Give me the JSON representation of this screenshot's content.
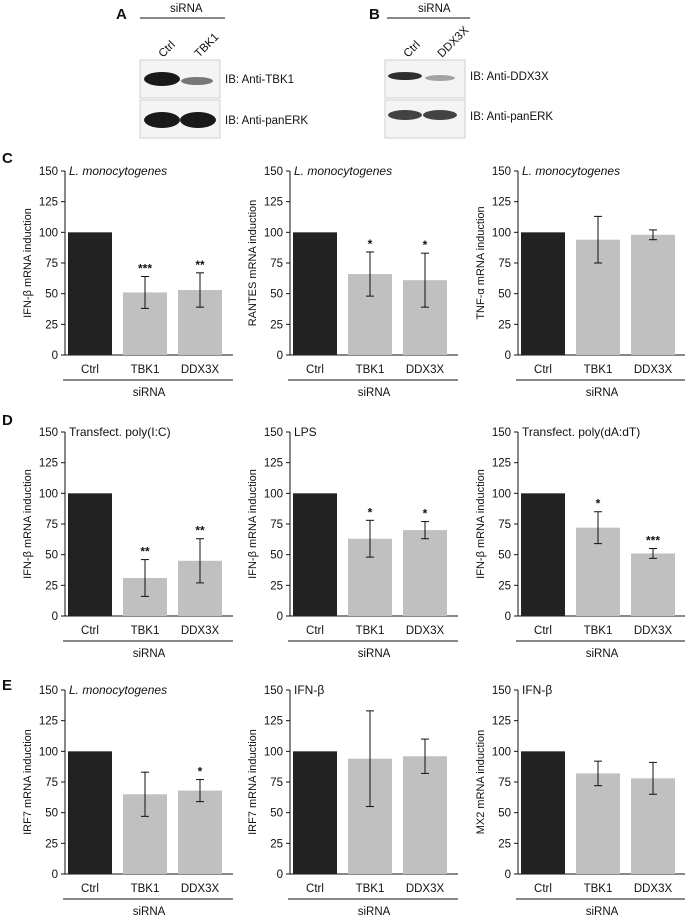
{
  "colors": {
    "ctrl": "#222222",
    "sirna": "#c0c0c0",
    "axis": "#111111"
  },
  "blots": [
    {
      "panel": "A",
      "header": "siRNA",
      "lanes": [
        "Ctrl",
        "TBK1"
      ],
      "rows": [
        {
          "label": "IB: Anti-TBK1",
          "intensity": [
            1.0,
            0.55
          ]
        },
        {
          "label": "IB: Anti-panERK",
          "intensity": [
            1.0,
            1.0
          ]
        }
      ]
    },
    {
      "panel": "B",
      "header": "siRNA",
      "lanes": [
        "Ctrl",
        "DDX3X"
      ],
      "rows": [
        {
          "label": "IB: Anti-DDX3X",
          "intensity": [
            0.9,
            0.35
          ]
        },
        {
          "label": "IB: Anti-panERK",
          "intensity": [
            0.8,
            0.8
          ]
        }
      ]
    }
  ],
  "chart_data": [
    {
      "type": "bar",
      "row": "C",
      "title": "L. monocytogenes",
      "italic": true,
      "ylabel": "IFN-β mRNA induction",
      "categories": [
        "Ctrl",
        "TBK1",
        "DDX3X"
      ],
      "values": [
        100,
        51,
        53
      ],
      "errors": [
        0,
        13,
        14
      ],
      "significance": [
        "",
        "***",
        "**"
      ],
      "ylim": [
        0,
        150
      ],
      "yticks": [
        0,
        25,
        50,
        75,
        100,
        125,
        150
      ],
      "group_label": "siRNA"
    },
    {
      "type": "bar",
      "row": "C",
      "title": "L. monocytogenes",
      "italic": true,
      "ylabel": "RANTES mRNA induction",
      "categories": [
        "Ctrl",
        "TBK1",
        "DDX3X"
      ],
      "values": [
        100,
        66,
        61
      ],
      "errors": [
        0,
        18,
        22
      ],
      "significance": [
        "",
        "*",
        "*"
      ],
      "ylim": [
        0,
        150
      ],
      "yticks": [
        0,
        25,
        50,
        75,
        100,
        125,
        150
      ],
      "group_label": "siRNA"
    },
    {
      "type": "bar",
      "row": "C",
      "title": "L. monocytogenes",
      "italic": true,
      "ylabel": "TNF-α mRNA induction",
      "categories": [
        "Ctrl",
        "TBK1",
        "DDX3X"
      ],
      "values": [
        100,
        94,
        98
      ],
      "errors": [
        0,
        19,
        4
      ],
      "significance": [
        "",
        "",
        ""
      ],
      "ylim": [
        0,
        150
      ],
      "yticks": [
        0,
        25,
        50,
        75,
        100,
        125,
        150
      ],
      "group_label": "siRNA"
    },
    {
      "type": "bar",
      "row": "D",
      "title": "Transfect. poly(I:C)",
      "italic": false,
      "ylabel": "IFN-β mRNA induction",
      "categories": [
        "Ctrl",
        "TBK1",
        "DDX3X"
      ],
      "values": [
        100,
        31,
        45
      ],
      "errors": [
        0,
        15,
        18
      ],
      "significance": [
        "",
        "**",
        "**"
      ],
      "ylim": [
        0,
        150
      ],
      "yticks": [
        0,
        25,
        50,
        75,
        100,
        125,
        150
      ],
      "group_label": "siRNA"
    },
    {
      "type": "bar",
      "row": "D",
      "title": "LPS",
      "italic": false,
      "ylabel": "IFN-β mRNA induction",
      "categories": [
        "Ctrl",
        "TBK1",
        "DDX3X"
      ],
      "values": [
        100,
        63,
        70
      ],
      "errors": [
        0,
        15,
        7
      ],
      "significance": [
        "",
        "*",
        "*"
      ],
      "ylim": [
        0,
        150
      ],
      "yticks": [
        0,
        25,
        50,
        75,
        100,
        125,
        150
      ],
      "group_label": "siRNA"
    },
    {
      "type": "bar",
      "row": "D",
      "title": "Transfect. poly(dA:dT)",
      "italic": false,
      "ylabel": "IFN-β mRNA induction",
      "categories": [
        "Ctrl",
        "TBK1",
        "DDX3X"
      ],
      "values": [
        100,
        72,
        51
      ],
      "errors": [
        0,
        13,
        4
      ],
      "significance": [
        "",
        "*",
        "***"
      ],
      "ylim": [
        0,
        150
      ],
      "yticks": [
        0,
        25,
        50,
        75,
        100,
        125,
        150
      ],
      "group_label": "siRNA"
    },
    {
      "type": "bar",
      "row": "E",
      "title": "L. monocytogenes",
      "italic": true,
      "ylabel": "IRF7 mRNA induction",
      "categories": [
        "Ctrl",
        "TBK1",
        "DDX3X"
      ],
      "values": [
        100,
        65,
        68
      ],
      "errors": [
        0,
        18,
        9
      ],
      "significance": [
        "",
        "",
        "*"
      ],
      "ylim": [
        0,
        150
      ],
      "yticks": [
        0,
        25,
        50,
        75,
        100,
        125,
        150
      ],
      "group_label": "siRNA"
    },
    {
      "type": "bar",
      "row": "E",
      "title": "IFN-β",
      "italic": false,
      "ylabel": "IRF7 mRNA induction",
      "categories": [
        "Ctrl",
        "TBK1",
        "DDX3X"
      ],
      "values": [
        100,
        94,
        96
      ],
      "errors": [
        0,
        39,
        14
      ],
      "significance": [
        "",
        "",
        ""
      ],
      "ylim": [
        0,
        150
      ],
      "yticks": [
        0,
        25,
        50,
        75,
        100,
        125,
        150
      ],
      "group_label": "siRNA"
    },
    {
      "type": "bar",
      "row": "E",
      "title": "IFN-β",
      "italic": false,
      "ylabel": "MX2 mRNA induction",
      "categories": [
        "Ctrl",
        "TBK1",
        "DDX3X"
      ],
      "values": [
        100,
        82,
        78
      ],
      "errors": [
        0,
        10,
        13
      ],
      "significance": [
        "",
        "",
        ""
      ],
      "ylim": [
        0,
        150
      ],
      "yticks": [
        0,
        25,
        50,
        75,
        100,
        125,
        150
      ],
      "group_label": "siRNA"
    }
  ]
}
